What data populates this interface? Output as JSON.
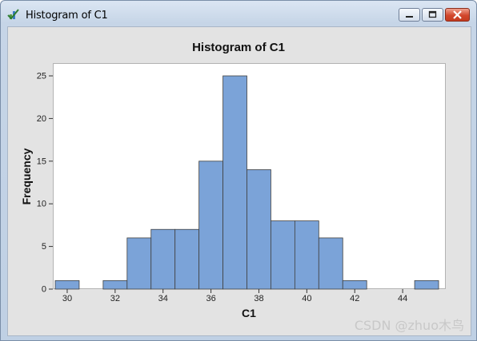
{
  "window": {
    "title": "Histogram of C1"
  },
  "chart_data": {
    "type": "bar",
    "title": "Histogram of C1",
    "xlabel": "C1",
    "ylabel": "Frequency",
    "bin_width": 1,
    "bin_centers": [
      30,
      31,
      32,
      33,
      34,
      35,
      36,
      37,
      38,
      39,
      40,
      41,
      42,
      43,
      44,
      45
    ],
    "values": [
      1,
      0,
      1,
      6,
      7,
      7,
      15,
      25,
      14,
      8,
      8,
      6,
      1,
      0,
      0,
      1
    ],
    "xticks": [
      30,
      32,
      34,
      36,
      38,
      40,
      42,
      44
    ],
    "yticks": [
      0,
      5,
      10,
      15,
      20,
      25
    ],
    "xlim": [
      29.4,
      45.8
    ],
    "ylim": [
      0,
      25
    ],
    "bar_color": "#7ba3d8",
    "bar_edge": "#404040",
    "grid": false
  },
  "watermark": "CSDN @zhuo木鸟"
}
